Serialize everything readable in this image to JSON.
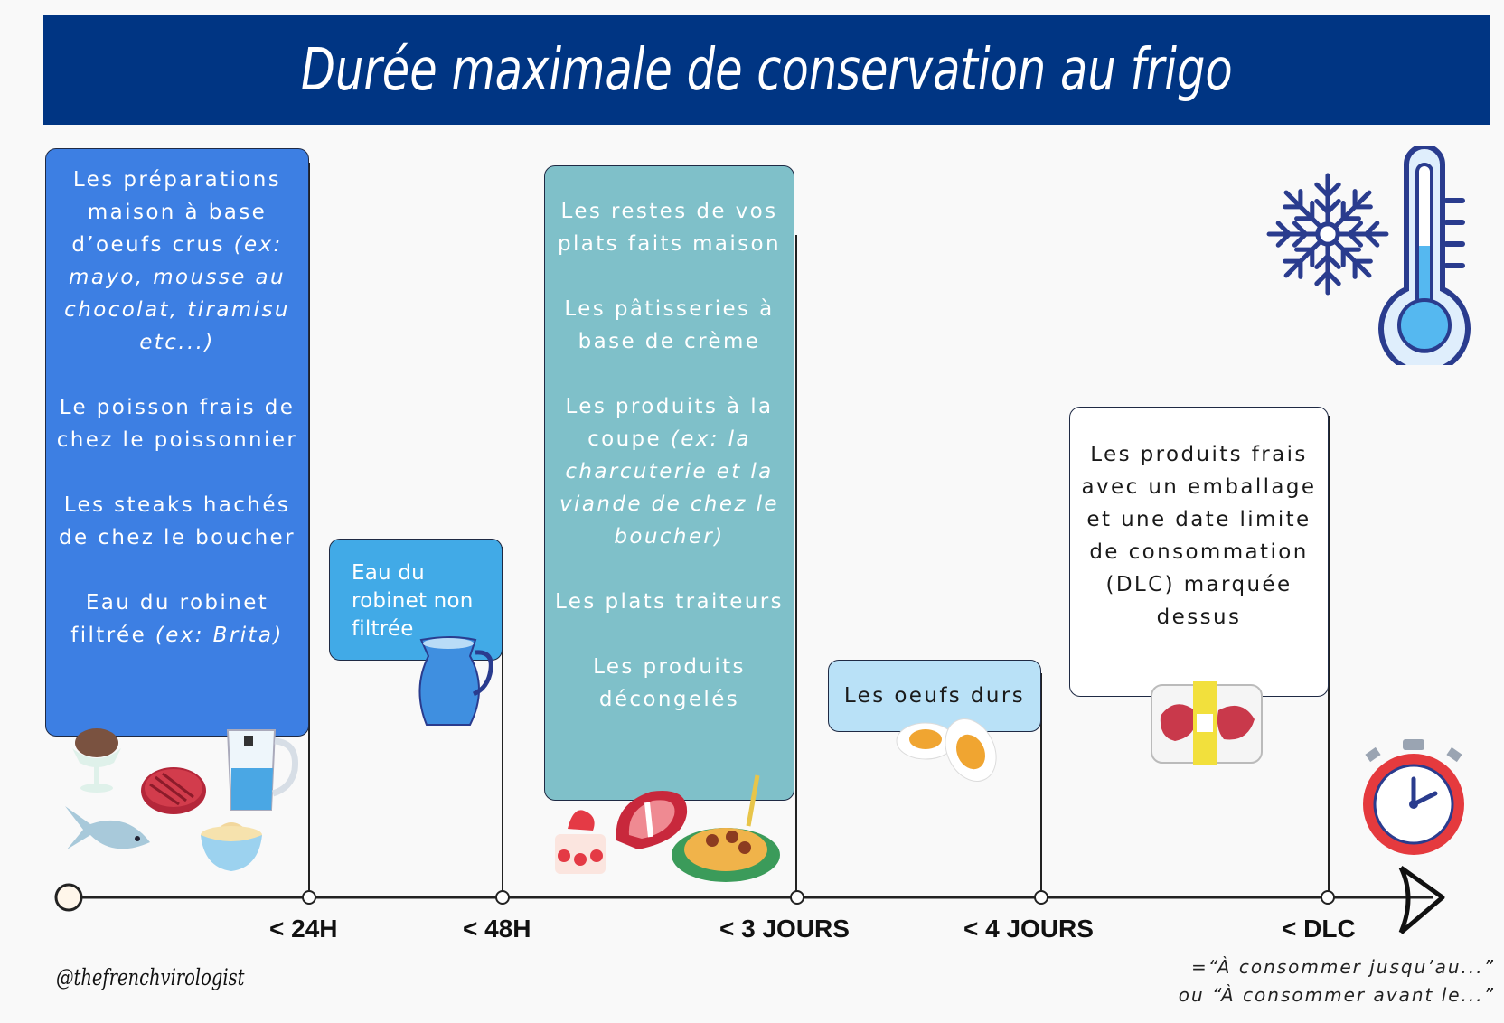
{
  "title": "Durée maximale de conservation au frigo",
  "cards": {
    "c1": {
      "p1_text": "Les préparations maison à base d’oeufs crus ",
      "p1_em": "(ex: mayo, mousse au chocolat, tiramisu etc...)",
      "p2": "Le poisson frais de chez le poissonnier",
      "p3": "Les steaks hachés de chez le boucher",
      "p4_text": "Eau du robinet filtrée ",
      "p4_em": "(ex: Brita)"
    },
    "c2": {
      "text": "Eau du robinet non filtrée"
    },
    "c3": {
      "p1": "Les restes de vos plats faits maison",
      "p2": "Les pâtisseries à base de crème",
      "p3_text": "Les produits à la coupe ",
      "p3_em": "(ex: la charcuterie et la viande de chez le boucher)",
      "p4": "Les plats traiteurs",
      "p5": "Les produits décongelés"
    },
    "c4": {
      "text": "Les oeufs durs"
    },
    "c5": {
      "text": "Les produits frais avec un emballage et une date limite de consommation (DLC) marquée dessus"
    }
  },
  "ticks": [
    "< 24H",
    "< 48H",
    "< 3 JOURS",
    "< 4 JOURS",
    "< DLC"
  ],
  "dlc_note": {
    "line1": "=“À consommer jusqu’au...”",
    "line2": "ou “À consommer avant le...”"
  },
  "handle": "@thefrenchvirologist",
  "colors": {
    "banner": "#003583",
    "card_24h": "#3d7fe3",
    "card_48h": "#41aae7",
    "card_3j": "#7fc0c9",
    "card_4j": "#b9e1f7",
    "card_dlc": "#ffffff"
  },
  "icons": [
    "snowflake-icon",
    "thermometer-icon",
    "stopwatch-icon",
    "arrow-head-icon",
    "ice-cream-cup-icon",
    "steak-icon",
    "fish-icon",
    "mayo-bowl-icon",
    "filter-jug-icon",
    "water-pitcher-icon",
    "strawberry-cake-icon",
    "t-bone-steak-icon",
    "spaghetti-plate-icon",
    "boiled-eggs-icon",
    "meat-package-icon"
  ]
}
